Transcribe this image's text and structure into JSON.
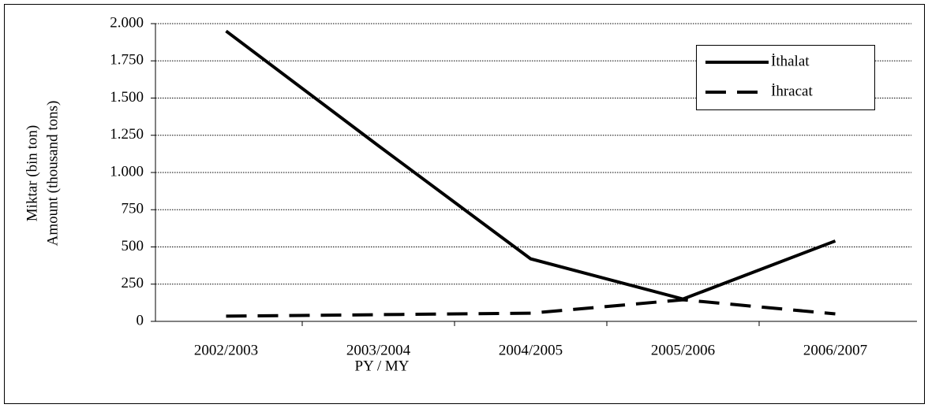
{
  "chart_data": {
    "type": "line",
    "x_label": "PY / MY",
    "y_label": [
      "Miktar (bin ton)",
      "Amount (thousand tons)"
    ],
    "categories": [
      "2002/2003",
      "2003/2004",
      "2004/2005",
      "2005/2006",
      "2006/2007"
    ],
    "series": [
      {
        "name": "İthalat",
        "color": "#000000",
        "dash": "solid",
        "values": [
          1950,
          1180,
          420,
          150,
          540
        ]
      },
      {
        "name": "İhracat",
        "color": "#000000",
        "dash": "dashed",
        "values": [
          35,
          45,
          55,
          145,
          50
        ]
      }
    ],
    "ylim": [
      0,
      2000
    ],
    "yticks": [
      0,
      250,
      500,
      750,
      {
        "value": 1000,
        "label": "1.000"
      },
      {
        "value": 1250,
        "label": "1.250"
      },
      {
        "value": 1500,
        "label": "1.500"
      },
      {
        "value": 1750,
        "label": "1.750"
      },
      {
        "value": 2000,
        "label": "2.000"
      }
    ],
    "grid": true,
    "legend": "upper right"
  }
}
